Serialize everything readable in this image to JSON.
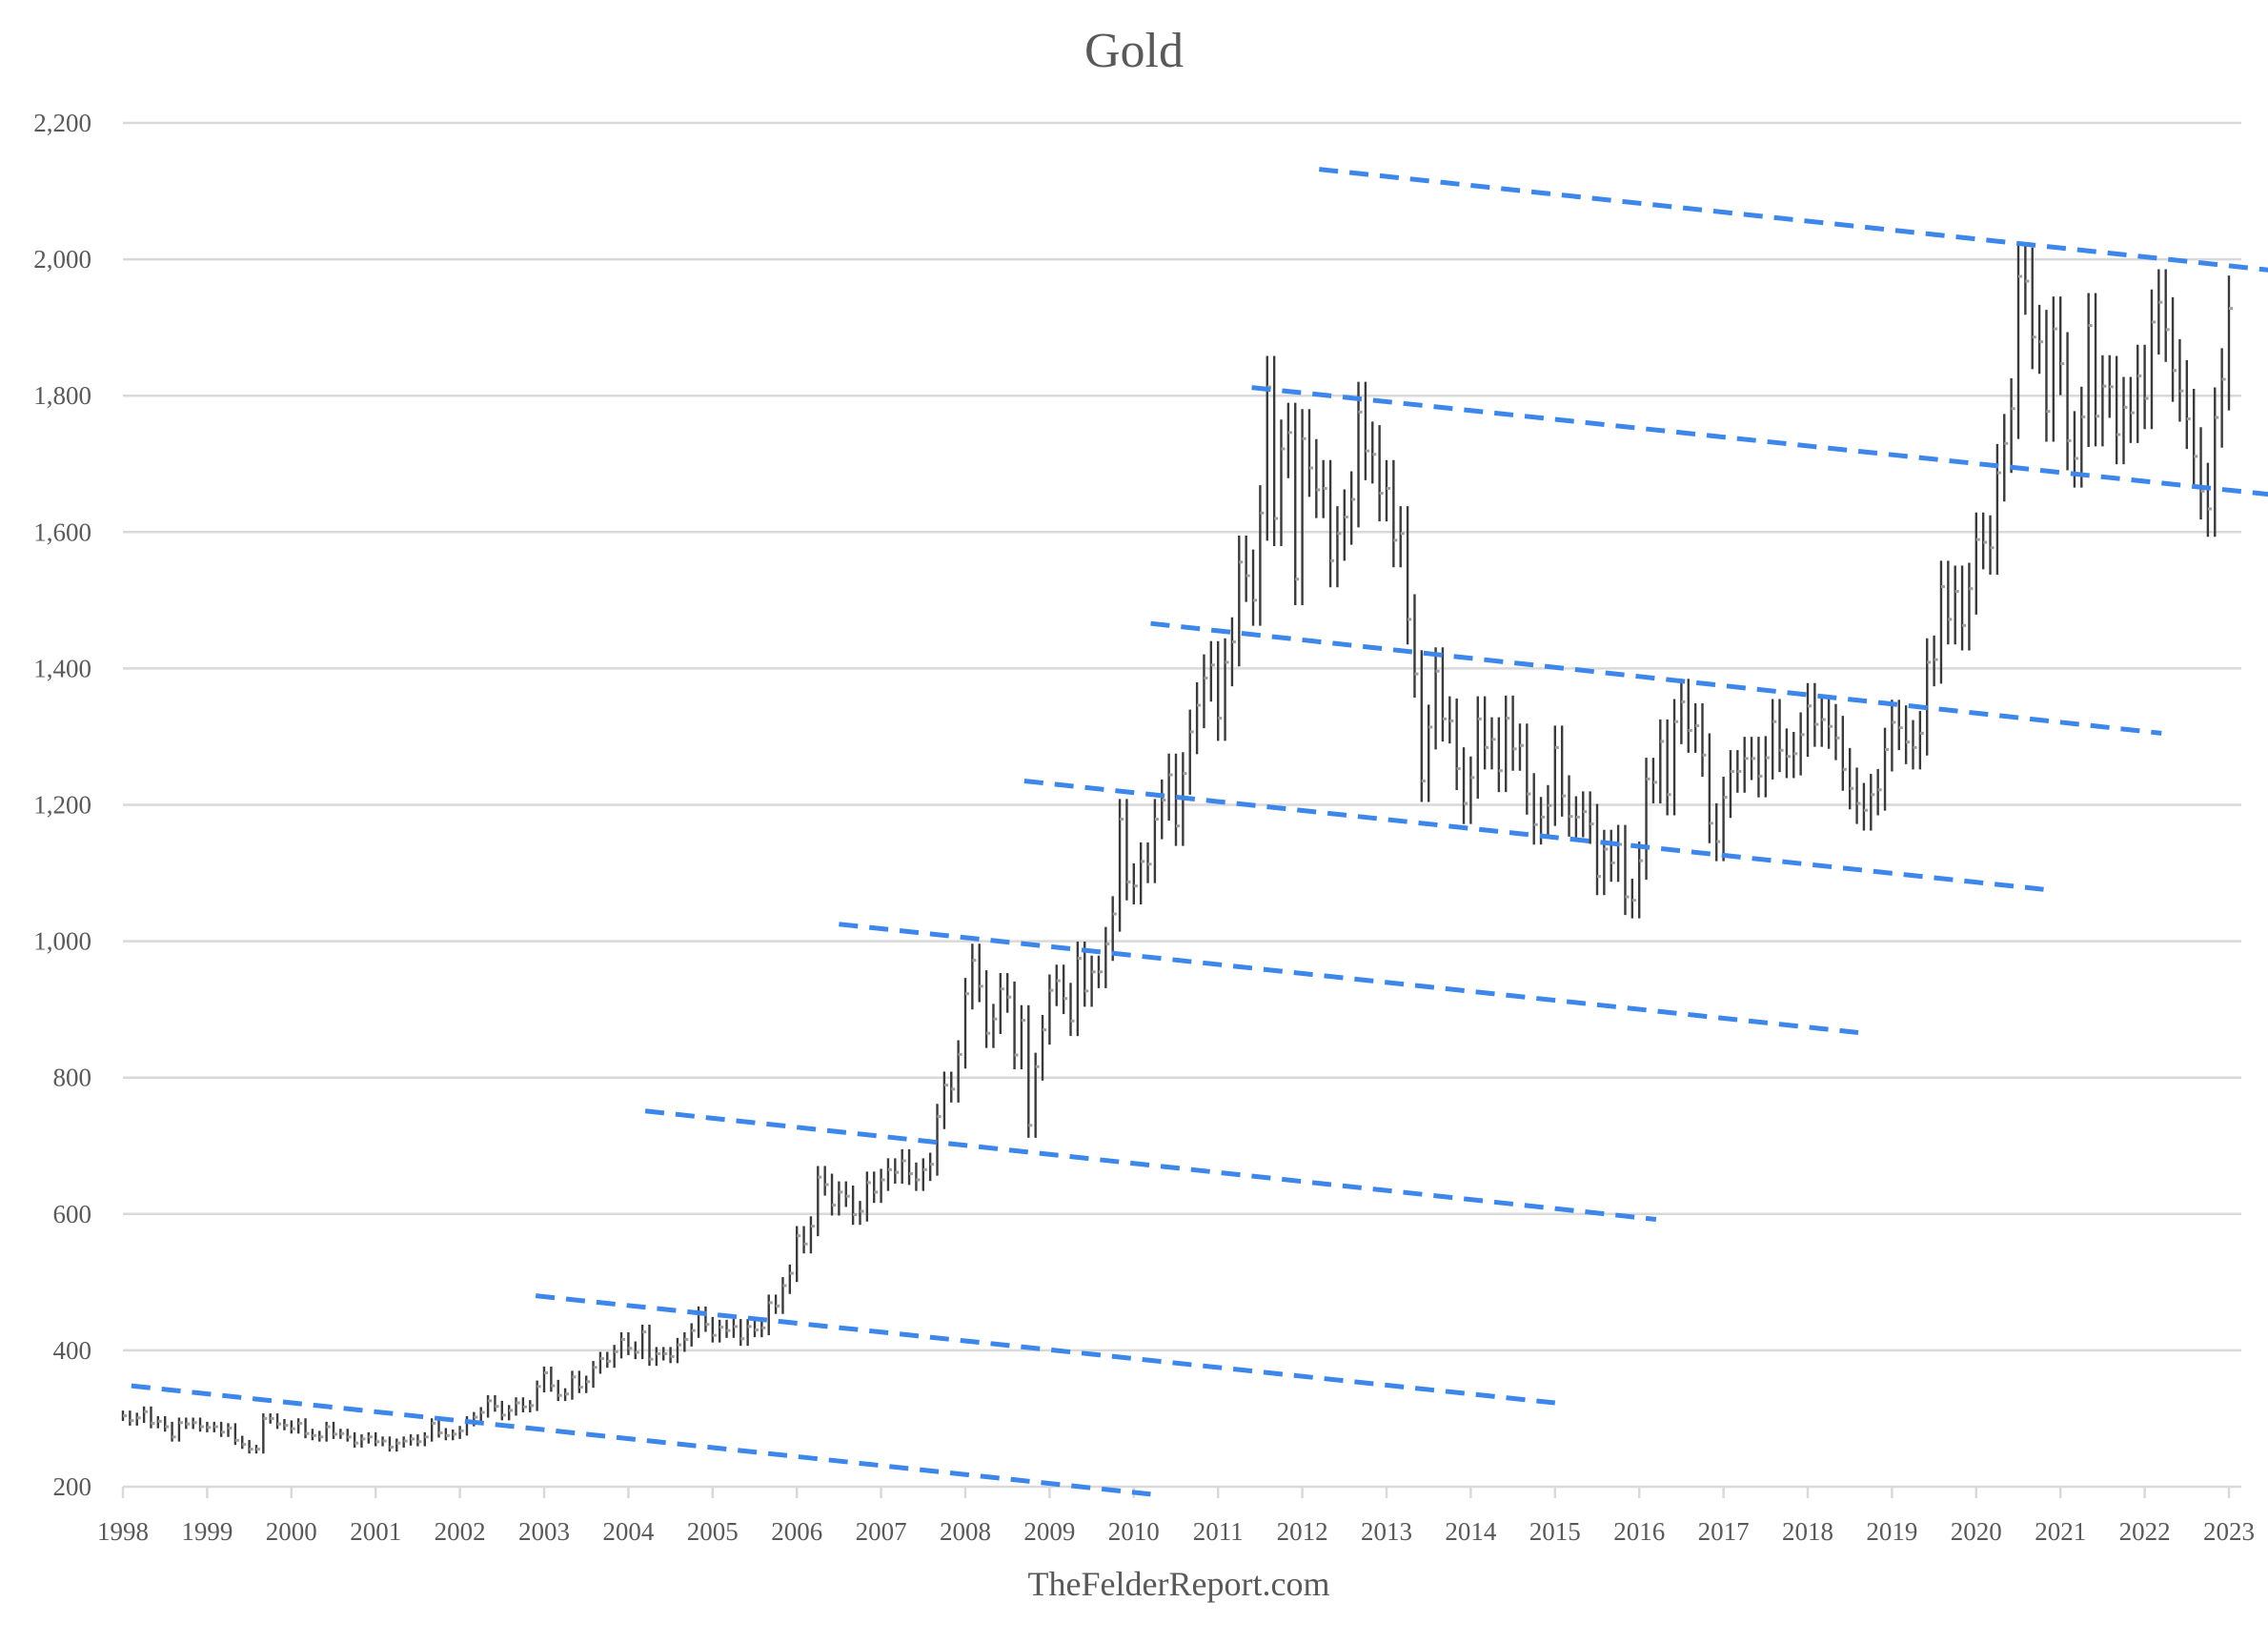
{
  "chart_data": {
    "type": "ohlc",
    "title": "Gold",
    "footer": "TheFelderReport.com",
    "xlabel": "",
    "ylabel": "",
    "ylim": [
      200,
      2200
    ],
    "xlim": [
      1998,
      2023
    ],
    "grid": true,
    "y_ticks": [
      200,
      400,
      600,
      800,
      1000,
      1200,
      1400,
      1600,
      1800,
      2000,
      2200
    ],
    "y_tick_labels": [
      "200",
      "400",
      "600",
      "800",
      "1,000",
      "1,200",
      "1,400",
      "1,600",
      "1,800",
      "2,000",
      "2,200"
    ],
    "x_ticks": [
      1998,
      1999,
      2000,
      2001,
      2002,
      2003,
      2004,
      2005,
      2006,
      2007,
      2008,
      2009,
      2010,
      2011,
      2012,
      2013,
      2014,
      2015,
      2016,
      2017,
      2018,
      2019,
      2020,
      2021,
      2022,
      2023
    ],
    "x_tick_labels": [
      "1998",
      "1999",
      "2000",
      "2001",
      "2002",
      "2003",
      "2004",
      "2005",
      "2006",
      "2007",
      "2008",
      "2009",
      "2010",
      "2011",
      "2012",
      "2013",
      "2014",
      "2015",
      "2016",
      "2017",
      "2018",
      "2019",
      "2020",
      "2021",
      "2022",
      "2023"
    ],
    "bar_interval": "monthly",
    "start_year": 1998,
    "monthly_close": [
      304,
      297,
      301,
      310,
      293,
      296,
      288,
      273,
      294,
      292,
      294,
      288,
      287,
      288,
      280,
      286,
      268,
      262,
      255,
      255,
      300,
      300,
      292,
      290,
      285,
      293,
      278,
      275,
      273,
      288,
      277,
      278,
      273,
      264,
      270,
      273,
      266,
      267,
      258,
      264,
      267,
      270,
      266,
      273,
      293,
      279,
      275,
      277,
      282,
      296,
      302,
      309,
      326,
      318,
      305,
      312,
      323,
      317,
      319,
      347,
      367,
      348,
      334,
      336,
      361,
      346,
      354,
      375,
      388,
      384,
      398,
      416,
      403,
      397,
      427,
      387,
      395,
      395,
      391,
      408,
      416,
      429,
      453,
      438,
      422,
      434,
      429,
      435,
      417,
      435,
      430,
      433,
      470,
      465,
      495,
      513,
      568,
      556,
      582,
      654,
      643,
      613,
      632,
      626,
      599,
      604,
      646,
      632,
      650,
      665,
      661,
      678,
      659,
      650,
      665,
      673,
      743,
      789,
      783,
      834,
      923,
      972,
      934,
      865,
      886,
      930,
      918,
      833,
      884,
      730,
      816,
      870,
      928,
      942,
      916,
      883,
      975,
      927,
      955,
      955,
      996,
      1040,
      1179,
      1087,
      1081,
      1117,
      1113,
      1179,
      1207,
      1244,
      1169,
      1246,
      1307,
      1346,
      1386,
      1405,
      1327,
      1409,
      1439,
      1556,
      1536,
      1500,
      1628,
      1813,
      1620,
      1722,
      1746,
      1531,
      1737,
      1694,
      1662,
      1664,
      1558,
      1598,
      1622,
      1648,
      1776,
      1719,
      1714,
      1657,
      1664,
      1588,
      1598,
      1472,
      1392,
      1235,
      1314,
      1396,
      1326,
      1323,
      1253,
      1202,
      1240,
      1326,
      1284,
      1296,
      1250,
      1327,
      1282,
      1287,
      1216,
      1171,
      1182,
      1199,
      1284,
      1213,
      1183,
      1182,
      1190,
      1172,
      1095,
      1135,
      1115,
      1142,
      1065,
      1060,
      1118,
      1238,
      1233,
      1293,
      1215,
      1322,
      1351,
      1309,
      1316,
      1273,
      1173,
      1146,
      1211,
      1249,
      1249,
      1268,
      1268,
      1242,
      1269,
      1322,
      1280,
      1271,
      1275,
      1303,
      1345,
      1318,
      1325,
      1315,
      1298,
      1252,
      1224,
      1202,
      1192,
      1215,
      1222,
      1281,
      1321,
      1313,
      1292,
      1284,
      1305,
      1409,
      1413,
      1520,
      1472,
      1513,
      1463,
      1517,
      1589,
      1585,
      1577,
      1687,
      1730,
      1781,
      1975,
      1968,
      1886,
      1879,
      1777,
      1898,
      1847,
      1734,
      1708,
      1769,
      1903,
      1770,
      1814,
      1813,
      1743,
      1783,
      1775,
      1829,
      1796,
      1908,
      1937,
      1897,
      1837,
      1807,
      1766,
      1711,
      1660,
      1634,
      1768,
      1824,
      1928
    ],
    "trendlines": [
      {
        "from": [
          1998.1,
          348
        ],
        "to": [
          2010.2,
          189
        ]
      },
      {
        "from": [
          2002.9,
          480
        ],
        "to": [
          2015.0,
          323
        ]
      },
      {
        "from": [
          2004.2,
          751
        ],
        "to": [
          2016.2,
          592
        ]
      },
      {
        "from": [
          2006.5,
          1025
        ],
        "to": [
          2018.6,
          866
        ]
      },
      {
        "from": [
          2008.7,
          1235
        ],
        "to": [
          2020.8,
          1076
        ]
      },
      {
        "from": [
          2010.2,
          1466
        ],
        "to": [
          2022.2,
          1305
        ]
      },
      {
        "from": [
          2011.4,
          1812
        ],
        "to": [
          2023.5,
          1655
        ]
      },
      {
        "from": [
          2012.2,
          2132
        ],
        "to": [
          2023.5,
          1984
        ]
      }
    ],
    "colors": {
      "bars": "#3a3a3a",
      "trendlines": "#3d86ea",
      "grid": "#d9d9d9",
      "text": "#595959"
    }
  }
}
